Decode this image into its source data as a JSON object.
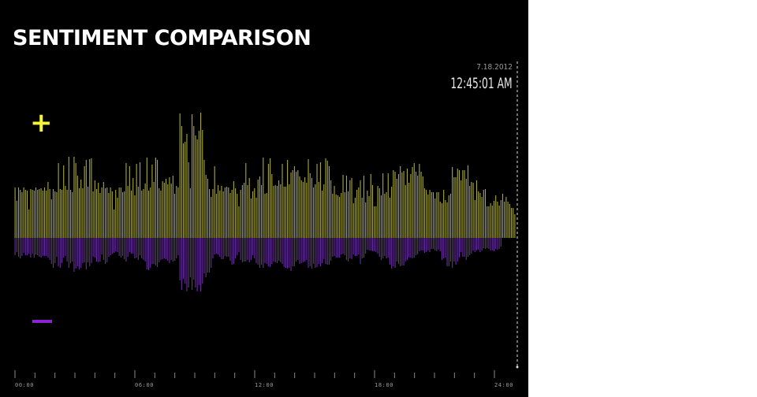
{
  "title": "SENTIMENT COMPARISON",
  "timestamp": {
    "date": "7.18.2012",
    "time": "12:45:01 AM"
  },
  "legend": {
    "positive_symbol": "+",
    "negative_symbol": "−"
  },
  "colors": {
    "positive": "#a8a83a",
    "negative": "#6a2ea0",
    "background": "#000000",
    "plus_icon": "#f5f538",
    "minus_icon": "#8a22d6",
    "axis": "#888888",
    "cursor": "#dddddd"
  },
  "chart_data": {
    "type": "bar",
    "xlabel": "",
    "ylabel": "",
    "x_tick_labels": [
      "00:00",
      "06:00",
      "12:00",
      "18:00",
      "24:00"
    ],
    "x_range": [
      0,
      24
    ],
    "grid": false,
    "series": [
      {
        "values": [
          64,
          47,
          64,
          61,
          58,
          64,
          61,
          60,
          36,
          62,
          61,
          60,
          64,
          61,
          62,
          63,
          60,
          64,
          60,
          71,
          62,
          49,
          62,
          59,
          58,
          95,
          62,
          61,
          92,
          66,
          61,
          103,
          61,
          58,
          103,
          95,
          79,
          63,
          74,
          63,
          91,
          99,
          65,
          100,
          101,
          59,
          73,
          62,
          70,
          57,
          64,
          71,
          63,
          64,
          57,
          64,
          59,
          36,
          61,
          51,
          64,
          64,
          58,
          59,
          95,
          66,
          91,
          60,
          76,
          54,
          94,
          65,
          96,
          60,
          62,
          69,
          102,
          60,
          64,
          93,
          71,
          102,
          99,
          63,
          60,
          72,
          70,
          75,
          68,
          77,
          69,
          79,
          56,
          66,
          64,
          158,
          142,
          120,
          122,
          132,
          96,
          63,
          157,
          142,
          130,
          125,
          136,
          159,
          137,
          99,
          80,
          75,
          62,
          52,
          62,
          91,
          56,
          67,
          60,
          66,
          59,
          64,
          65,
          64,
          57,
          61,
          72,
          63,
          56,
          40,
          61,
          67,
          70,
          95,
          67,
          76,
          50,
          59,
          63,
          51,
          74,
          78,
          67,
          102,
          56,
          57,
          94,
          101,
          81,
          66,
          67,
          66,
          73,
          68,
          94,
          65,
          65,
          99,
          68,
          83,
          86,
          91,
          84,
          86,
          78,
          73,
          71,
          77,
          70,
          100,
          82,
          76,
          64,
          68,
          94,
          71,
          96,
          60,
          68,
          101,
          98,
          91,
          73,
          56,
          66,
          55,
          54,
          52,
          57,
          80,
          58,
          79,
          59,
          73,
          76,
          44,
          51,
          61,
          64,
          73,
          51,
          79,
          45,
          60,
          53,
          81,
          67,
          40,
          40,
          66,
          63,
          54,
          82,
          56,
          58,
          82,
          51,
          65,
          86,
          84,
          75,
          81,
          91,
          83,
          85,
          67,
          88,
          70,
          81,
          90,
          95,
          84,
          79,
          94,
          84,
          78,
          63,
          61,
          55,
          61,
          58,
          58,
          50,
          58,
          58,
          46,
          44,
          61,
          48,
          45,
          54,
          56,
          90,
          77,
          77,
          88,
          86,
          73,
          86,
          86,
          75,
          92,
          66,
          71,
          70,
          48,
          73,
          59,
          57,
          52,
          61,
          62,
          40,
          40,
          44,
          41,
          47,
          54,
          46,
          41,
          48,
          56,
          46,
          52,
          46,
          43,
          38,
          38,
          30
        ]
      },
      {
        "values": [
          -22,
          -18,
          -24,
          -26,
          -23,
          -19,
          -22,
          -22,
          -20,
          -25,
          -20,
          -25,
          -21,
          -22,
          -24,
          -25,
          -23,
          -23,
          -23,
          -25,
          -28,
          -33,
          -38,
          -32,
          -24,
          -36,
          -38,
          -32,
          -25,
          -23,
          -30,
          -38,
          -32,
          -30,
          -43,
          -39,
          -36,
          -40,
          -38,
          -32,
          -31,
          -40,
          -31,
          -36,
          -32,
          -24,
          -25,
          -30,
          -31,
          -30,
          -21,
          -28,
          -33,
          -31,
          -24,
          -22,
          -20,
          -19,
          -17,
          -18,
          -23,
          -25,
          -23,
          -27,
          -30,
          -24,
          -18,
          -20,
          -20,
          -26,
          -25,
          -28,
          -22,
          -26,
          -28,
          -30,
          -40,
          -41,
          -38,
          -33,
          -33,
          -35,
          -37,
          -31,
          -28,
          -27,
          -26,
          -27,
          -29,
          -32,
          -28,
          -30,
          -29,
          -26,
          -22,
          -54,
          -66,
          -52,
          -58,
          -68,
          -63,
          -50,
          -66,
          -53,
          -63,
          -68,
          -60,
          -68,
          -58,
          -45,
          -50,
          -44,
          -44,
          -38,
          -26,
          -21,
          -20,
          -21,
          -24,
          -27,
          -27,
          -23,
          -24,
          -24,
          -29,
          -34,
          -33,
          -26,
          -22,
          -18,
          -28,
          -31,
          -30,
          -30,
          -28,
          -31,
          -28,
          -22,
          -26,
          -32,
          -34,
          -38,
          -34,
          -38,
          -32,
          -33,
          -36,
          -37,
          -33,
          -30,
          -31,
          -32,
          -29,
          -31,
          -33,
          -37,
          -38,
          -39,
          -38,
          -42,
          -36,
          -36,
          -30,
          -28,
          -33,
          -32,
          -31,
          -30,
          -28,
          -38,
          -36,
          -39,
          -33,
          -38,
          -37,
          -33,
          -36,
          -32,
          -27,
          -33,
          -34,
          -34,
          -29,
          -24,
          -23,
          -25,
          -25,
          -25,
          -21,
          -20,
          -22,
          -28,
          -30,
          -26,
          -27,
          -21,
          -23,
          -23,
          -21,
          -33,
          -26,
          -25,
          -20,
          -15,
          -16,
          -16,
          -17,
          -17,
          -18,
          -20,
          -24,
          -28,
          -26,
          -23,
          -26,
          -25,
          -34,
          -39,
          -36,
          -38,
          -30,
          -33,
          -36,
          -35,
          -35,
          -30,
          -28,
          -25,
          -25,
          -26,
          -25,
          -22,
          -21,
          -17,
          -16,
          -16,
          -19,
          -18,
          -16,
          -18,
          -14,
          -14,
          -16,
          -17,
          -15,
          -17,
          -28,
          -26,
          -25,
          -36,
          -36,
          -30,
          -38,
          -30,
          -34,
          -30,
          -25,
          -18,
          -24,
          -24,
          -28,
          -24,
          -22,
          -20,
          -16,
          -18,
          -16,
          -15,
          -18,
          -16,
          -13,
          -14,
          -13,
          -14,
          -16,
          -16,
          -17,
          -14,
          -15,
          -14,
          -11
        ]
      }
    ]
  }
}
